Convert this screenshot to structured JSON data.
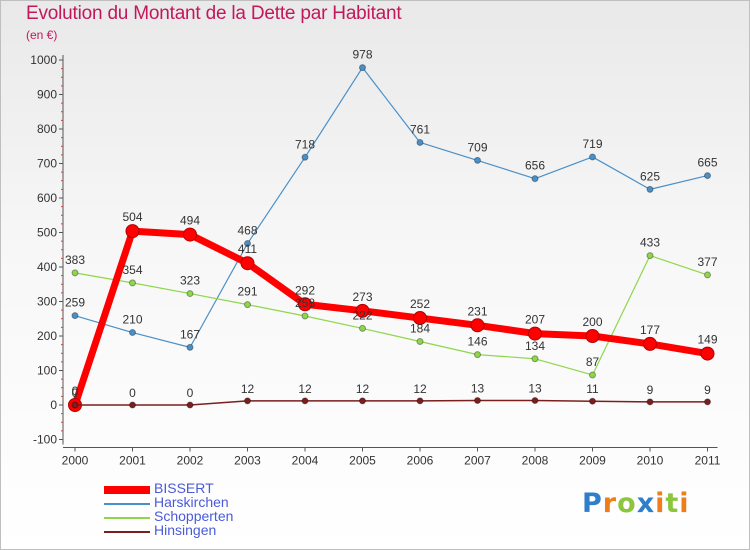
{
  "chart_data": {
    "type": "line",
    "title": "Evolution du Montant de la Dette par Habitant",
    "subtitle": "(en €)",
    "x": [
      "2000",
      "2001",
      "2002",
      "2003",
      "2004",
      "2005",
      "2006",
      "2007",
      "2008",
      "2009",
      "2010",
      "2011"
    ],
    "y_ticks": [
      -100,
      0,
      100,
      200,
      300,
      400,
      500,
      600,
      700,
      800,
      900,
      1000
    ],
    "ylim": [
      -100,
      1000
    ],
    "grid": false,
    "legend_position": "bottom-left",
    "series": [
      {
        "name": "BISSERT",
        "color": "#ff0000",
        "values": [
          0,
          504,
          494,
          411,
          292,
          273,
          252,
          231,
          207,
          200,
          177,
          149
        ]
      },
      {
        "name": "Harskirchen",
        "color": "#4a90c8",
        "values": [
          259,
          210,
          167,
          468,
          718,
          978,
          761,
          709,
          656,
          719,
          625,
          665
        ]
      },
      {
        "name": "Schopperten",
        "color": "#8fd64a",
        "values": [
          383,
          354,
          323,
          291,
          258,
          222,
          184,
          146,
          134,
          87,
          433,
          377
        ]
      },
      {
        "name": "Hinsingen",
        "color": "#7a1e1e",
        "values": [
          0,
          0,
          0,
          12,
          12,
          12,
          12,
          13,
          13,
          11,
          9,
          9
        ]
      }
    ]
  },
  "logo": {
    "letters": [
      "P",
      "r",
      "o",
      "x",
      "i",
      "t",
      "i"
    ],
    "colors": [
      "#2e7ec9",
      "#ef7d1a",
      "#8cc63f",
      "#2e7ec9",
      "#ef7d1a",
      "#8cc63f",
      "#ef7d1a"
    ]
  }
}
